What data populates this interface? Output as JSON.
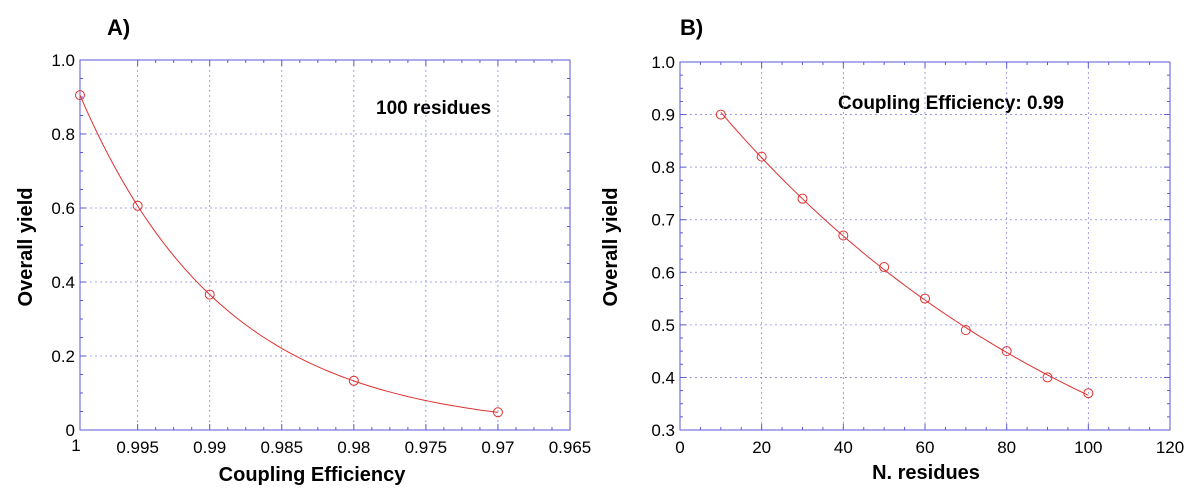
{
  "colors": {
    "series": "#e03030",
    "axes": "#5a5ad8",
    "grid": "#8888e0"
  },
  "chart_data": [
    {
      "panel_label": "A)",
      "type": "scatter",
      "annotation": "100 residues",
      "xlabel": "Coupling Efficiency",
      "ylabel": "Overall yield",
      "xlim": [
        0.999,
        0.965
      ],
      "ylim": [
        0,
        1.0
      ],
      "x_reversed": true,
      "xticks": [
        0.995,
        0.99,
        0.985,
        0.98,
        0.975,
        0.97,
        0.965
      ],
      "xtick_labels": [
        "0.995",
        "0.99",
        "0.985",
        "0.98",
        "0.975",
        "0.97",
        "0.965"
      ],
      "x_edge_label": "1",
      "yticks": [
        0,
        0.2,
        0.4,
        0.6,
        0.8,
        1.0
      ],
      "ytick_labels": [
        "0",
        "0.2",
        "0.4",
        "0.6",
        "0.8",
        "1.0"
      ],
      "grid": true,
      "fit": "y = x^100",
      "series": [
        {
          "x": [
            0.999,
            0.995,
            0.99,
            0.98,
            0.97
          ],
          "y": [
            0.905,
            0.606,
            0.366,
            0.133,
            0.048
          ]
        }
      ]
    },
    {
      "panel_label": "B)",
      "type": "scatter",
      "annotation": "Coupling Efficiency: 0.99",
      "xlabel": "N. residues",
      "ylabel": "Overall yield",
      "xlim": [
        0,
        120
      ],
      "ylim": [
        0.3,
        1.0
      ],
      "x_reversed": false,
      "xticks": [
        0,
        20,
        40,
        60,
        80,
        100,
        120
      ],
      "xtick_labels": [
        "0",
        "20",
        "40",
        "60",
        "80",
        "100",
        "120"
      ],
      "x_edge_label": "",
      "yticks": [
        0.3,
        0.4,
        0.5,
        0.6,
        0.7,
        0.8,
        0.9,
        1.0
      ],
      "ytick_labels": [
        "0.3",
        "0.4",
        "0.5",
        "0.6",
        "0.7",
        "0.8",
        "0.9",
        "1.0"
      ],
      "grid": true,
      "fit": "y = 0.99^x",
      "series": [
        {
          "x": [
            10,
            20,
            30,
            40,
            50,
            60,
            70,
            80,
            90,
            100
          ],
          "y": [
            0.9,
            0.82,
            0.74,
            0.67,
            0.61,
            0.55,
            0.49,
            0.45,
            0.4,
            0.37
          ]
        }
      ]
    }
  ]
}
